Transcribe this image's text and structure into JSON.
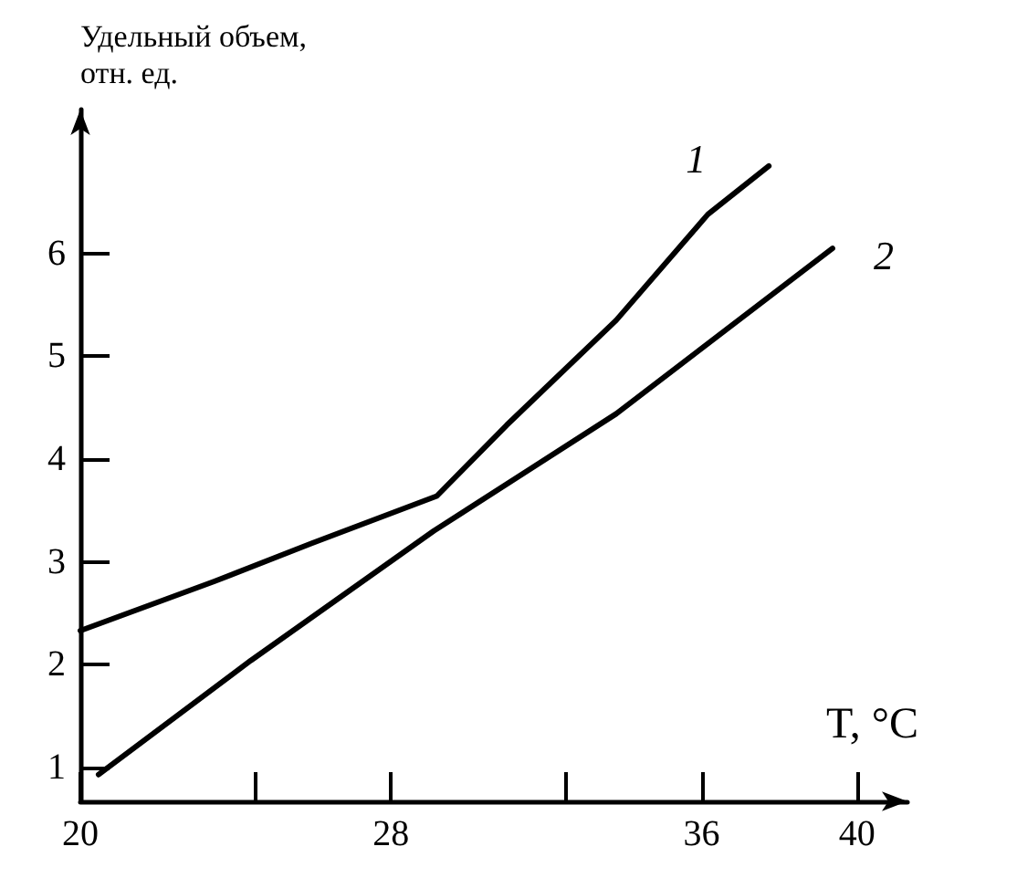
{
  "chart_data": {
    "type": "line",
    "xlabel": "T, °C",
    "ylabel": "Удельный объем,\nотн. ед.",
    "xlim": [
      20,
      41.3
    ],
    "xticks": [
      20,
      {
        "value": 24.5,
        "label": null
      },
      28,
      {
        "value": 32.5,
        "label": null
      },
      36,
      40
    ],
    "ylim": [
      0.67,
      7.4
    ],
    "yticks": [
      1,
      2,
      3,
      4,
      5,
      6
    ],
    "grid": false,
    "legend": false,
    "marker": "none",
    "line_style": "solid",
    "series": [
      {
        "name": "1",
        "color": "#000000",
        "x": [
          20,
          23.45,
          25.96,
          29.18,
          30.98,
          33.8,
          36.16,
          37.73
        ],
        "values": [
          2.33,
          2.81,
          3.18,
          3.64,
          4.33,
          5.35,
          6.38,
          6.85
        ]
      },
      {
        "name": "2",
        "color": "#000000",
        "x": [
          20.47,
          24.39,
          29.1,
          33.8,
          39.37
        ],
        "values": [
          0.93,
          2.04,
          3.3,
          4.44,
          6.05
        ]
      }
    ]
  }
}
